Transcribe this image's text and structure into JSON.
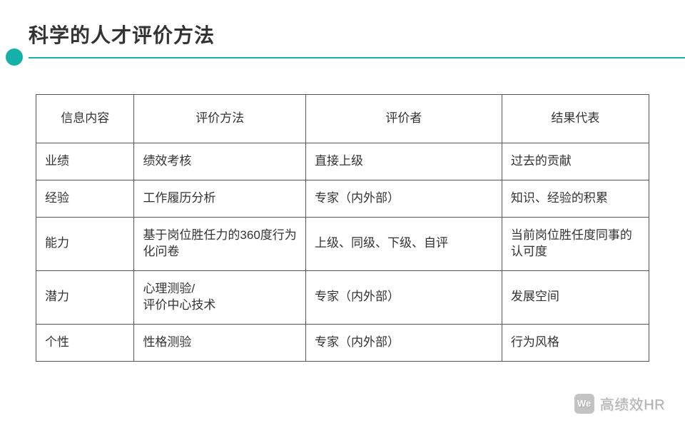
{
  "colors": {
    "accent": "#16b1a8",
    "border": "#555555",
    "text": "#333333",
    "background": "#ffffff"
  },
  "title": "科学的人才评价方法",
  "table": {
    "columns": [
      "信息内容",
      "评价方法",
      "评价者",
      "结果代表"
    ],
    "rows": [
      [
        "业绩",
        "绩效考核",
        "直接上级",
        "过去的贡献"
      ],
      [
        "经验",
        "工作履历分析",
        "专家（内外部）",
        "知识、经验的积累"
      ],
      [
        "能力",
        "基于岗位胜任力的360度行为化问卷",
        "上级、同级、下级、自评",
        "当前岗位胜任度同事的认可度"
      ],
      [
        "潜力",
        "心理测验/\n评价中心技术",
        "专家（内外部）",
        "发展空间"
      ],
      [
        "个性",
        "性格测验",
        "专家（内外部）",
        "行为风格"
      ]
    ]
  },
  "watermark": {
    "icon_label": "We",
    "text": "高绩效HR"
  }
}
